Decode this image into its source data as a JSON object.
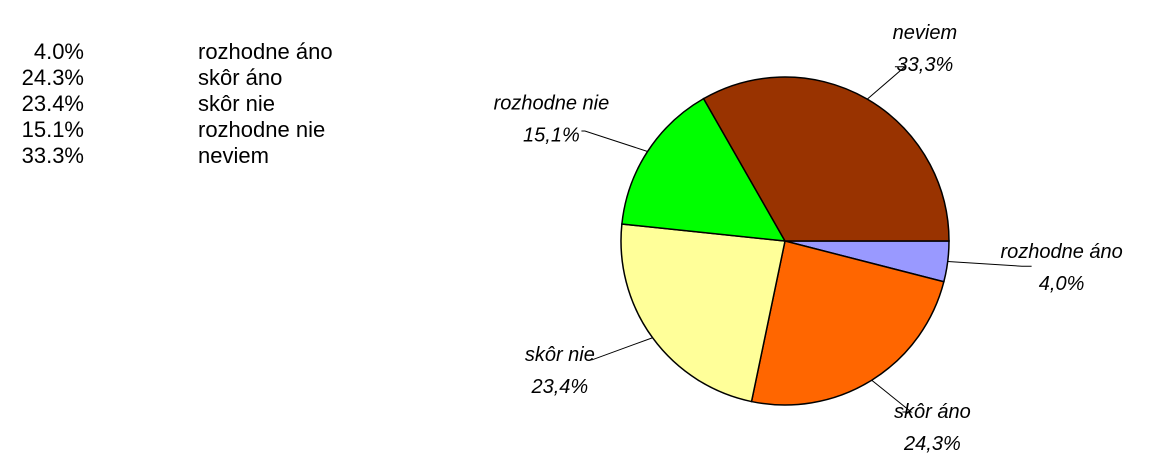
{
  "chart_data": {
    "type": "pie",
    "categories": [
      "rozhodne áno",
      "skôr áno",
      "skôr nie",
      "rozhodne nie",
      "neviem"
    ],
    "values": [
      4.0,
      24.3,
      23.4,
      15.1,
      33.3
    ],
    "value_labels": [
      "4,0%",
      "24,3%",
      "23,4%",
      "15,1%",
      "33,3%"
    ],
    "list_labels": [
      "4.0%",
      "24.3%",
      "23.4%",
      "15.1%",
      "33.3%"
    ],
    "colors": [
      "#9999ff",
      "#ff6600",
      "#ffff99",
      "#00ff00",
      "#993300"
    ]
  }
}
